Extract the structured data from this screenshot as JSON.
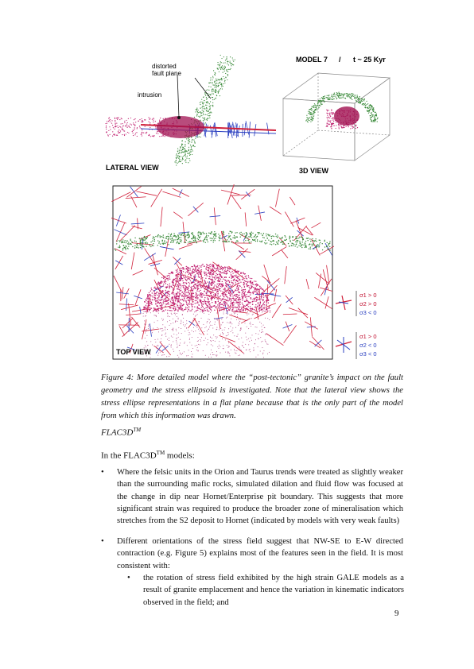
{
  "figure": {
    "lateral": {
      "label_fault": "distorted",
      "label_fault2": "fault plane",
      "label_intrusion": "intrusion",
      "view_label": "LATERAL VIEW"
    },
    "view3d": {
      "model_label": "MODEL 7",
      "sep": "/",
      "time_label": "t ~ 25 Kyr",
      "view_label": "3D VIEW"
    },
    "top": {
      "view_label": "TOP VIEW",
      "legend1": [
        "σ1 > 0",
        "σ2 > 0",
        "σ3 < 0"
      ],
      "legend2": [
        "σ1 > 0",
        "σ2 < 0",
        "σ3 < 0"
      ]
    }
  },
  "caption": "Figure 4: More detailed model where the “post-tectonic” granite’s impact on the fault geometry and the stress ellipsoid is investigated. Note that the lateral view shows the stress ellipse representations in a flat plane because that is the only part of the model from which this information was drawn.",
  "heading": "FLAC3D",
  "heading_sup": "TM",
  "intro_pre": "In the FLAC3D",
  "intro_sup": "TM",
  "intro_post": " models:",
  "bullets": [
    "Where the felsic units in the Orion and Taurus trends were treated as slightly weaker than the surrounding mafic rocks, simulated dilation and fluid flow was focused at the change in dip near Hornet/Enterprise pit boundary. This suggests that more significant strain was required to produce the broader zone of mineralisation which stretches from the S2 deposit to Hornet (indicated by models with very weak faults)",
    "Different orientations of the stress field suggest that NW-SE to E-W directed contraction (e.g. Figure 5) explains most of the features seen in the field. It is most consistent with:"
  ],
  "sub_bullets": [
    "the rotation of stress field exhibited by the high strain GALE models as a result of granite emplacement and hence the variation in kinematic indicators observed in the field; and"
  ],
  "bullet_symbol": "•",
  "page_number": "9"
}
